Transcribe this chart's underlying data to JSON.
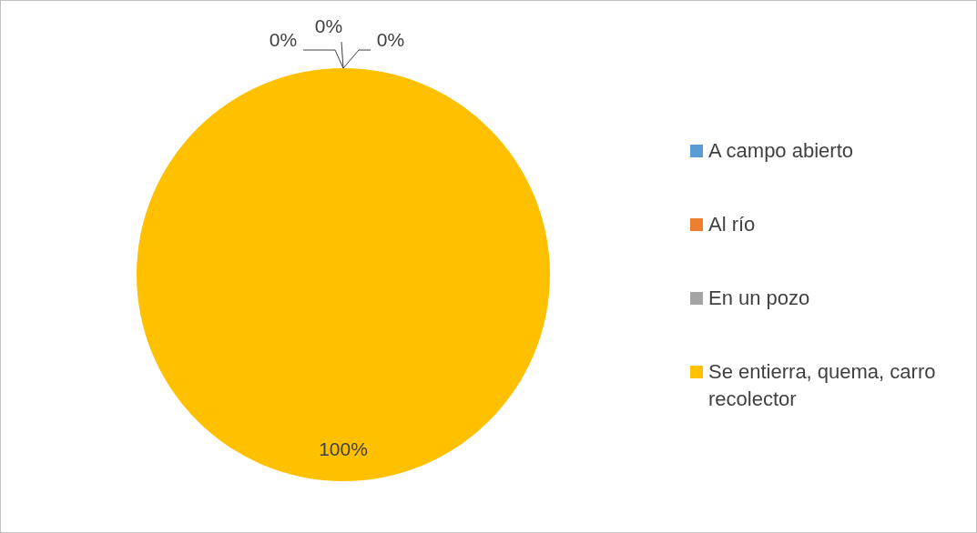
{
  "chart_data": {
    "type": "pie",
    "categories": [
      "A campo abierto",
      "Al río",
      "En un pozo",
      "Se entierra, quema, carro recolector"
    ],
    "values": [
      0,
      0,
      0,
      100
    ],
    "colors": [
      "#5b9bd5",
      "#ed7d31",
      "#a5a5a5",
      "#ffc000"
    ],
    "value_labels": [
      "0%",
      "0%",
      "0%",
      "100%"
    ],
    "legend": "right"
  }
}
